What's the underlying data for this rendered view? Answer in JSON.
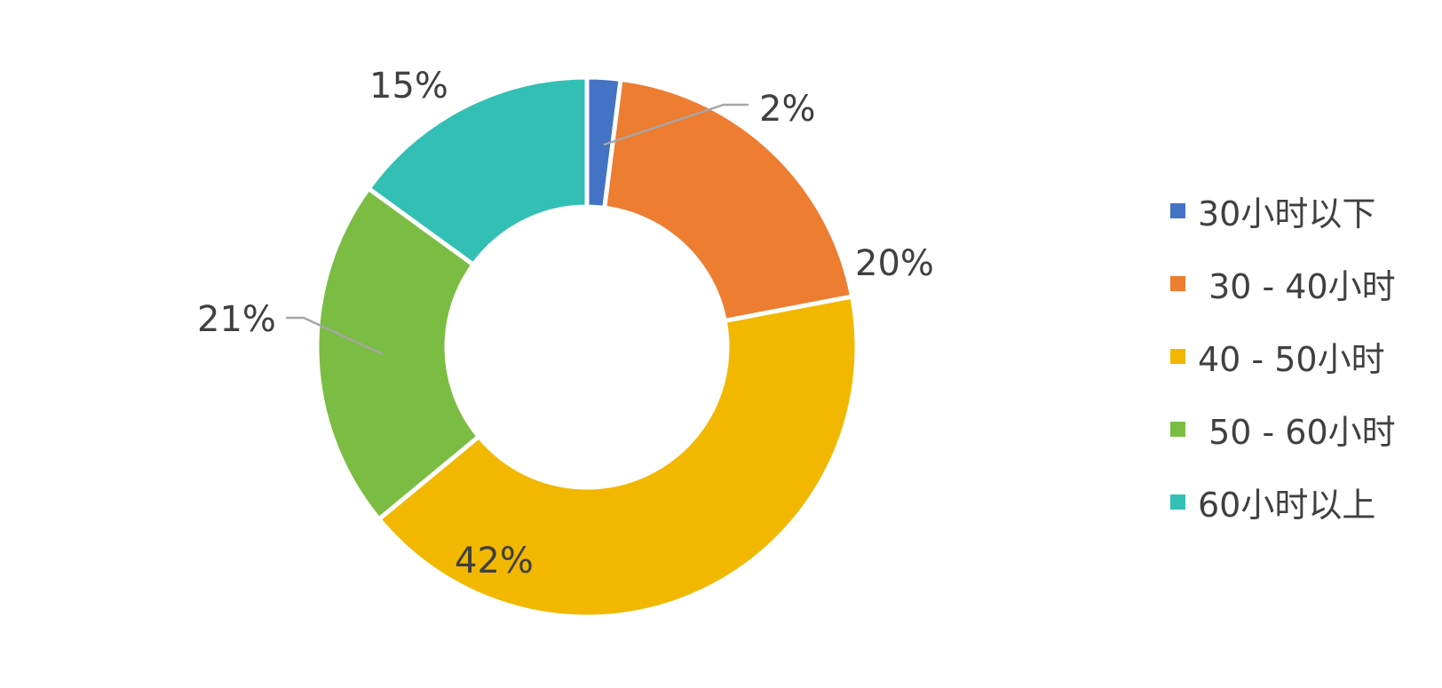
{
  "chart_data": {
    "type": "donut",
    "title": "",
    "categories": [
      "30小时以下",
      " 30 - 40小时",
      "40 - 50小时",
      " 50 - 60小时",
      "60小时以上"
    ],
    "values": [
      2,
      20,
      42,
      21,
      15
    ],
    "data_labels": [
      "2%",
      "20%",
      "42%",
      "21%",
      "15%"
    ],
    "colors": [
      "#4472C4",
      "#ED7D31",
      "#F2B800",
      "#7ABD42",
      "#31C0B3"
    ],
    "legend_position": "right"
  }
}
